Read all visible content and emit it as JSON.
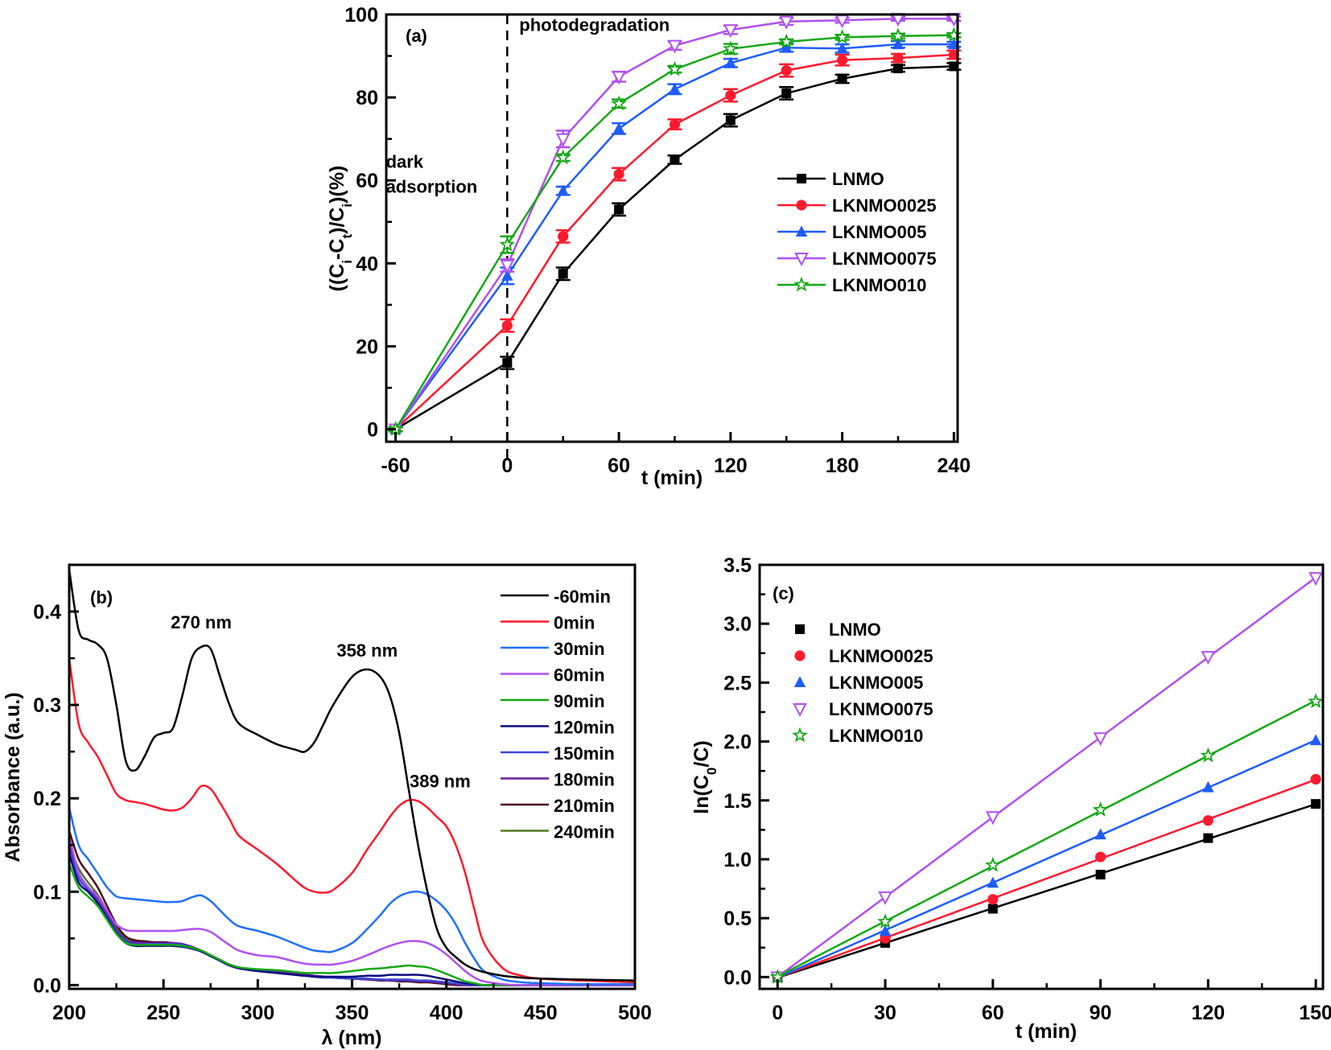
{
  "chart_data": [
    {
      "id": "a",
      "type": "line",
      "panel_label": "(a)",
      "title": "",
      "xlabel": "t (min)",
      "ylabel": "((C_i-C_t)/C_i)(%)",
      "ylabel_parts": {
        "open": "((C",
        "sub1": "i",
        "mid": "-C",
        "sub2": "t",
        "mid2": ")/C",
        "sub3": "i",
        "close": ")(%)"
      },
      "xlim": [
        -65,
        242
      ],
      "ylim": [
        -3,
        100
      ],
      "xticks": [
        -60,
        0,
        60,
        120,
        180,
        240
      ],
      "xticks_minor": [
        -30,
        30,
        90,
        150,
        210
      ],
      "yticks": [
        0,
        20,
        40,
        60,
        80,
        100
      ],
      "yticks_minor": [
        10,
        30,
        50,
        70,
        90
      ],
      "grid": false,
      "legend_position": "right",
      "annotations": [
        {
          "text": "dark",
          "x": -60,
          "y": 63
        },
        {
          "text": "adsorption",
          "x": -60,
          "y": 57
        },
        {
          "text": "photodegradation",
          "x": 3,
          "y": 96
        }
      ],
      "vline": {
        "x": 0,
        "style": "dashed"
      },
      "x": [
        -60,
        0,
        30,
        60,
        90,
        120,
        150,
        180,
        210,
        240
      ],
      "series": [
        {
          "name": "LNMO",
          "color": "#000000",
          "marker": "square",
          "values": [
            0,
            16,
            37.5,
            53,
            65,
            74.5,
            81,
            84.5,
            87,
            87.5
          ],
          "errors": [
            0.5,
            1.5,
            1.5,
            1.5,
            1,
            1.5,
            1.5,
            1,
            0.8,
            0.8
          ]
        },
        {
          "name": "LKNMO0025",
          "color": "#ff1a2e",
          "marker": "circle",
          "values": [
            0,
            25,
            46.5,
            61.5,
            73.5,
            80.5,
            86.5,
            89,
            89.5,
            90.3
          ],
          "errors": [
            0.5,
            1.5,
            1.5,
            1.5,
            1.2,
            1.5,
            1.5,
            1.3,
            1,
            1
          ]
        },
        {
          "name": "LKNMO005",
          "color": "#1f5cff",
          "marker": "triangle-up",
          "values": [
            0,
            37,
            57.5,
            72.5,
            82,
            88.3,
            92,
            91.8,
            92.8,
            92.8
          ],
          "errors": [
            0.5,
            2,
            1,
            1.3,
            1.2,
            1,
            1,
            1,
            0.8,
            0.6
          ]
        },
        {
          "name": "LKNMO0075",
          "color": "#b050f0",
          "marker": "triangle-down",
          "values": [
            0,
            39.5,
            70,
            85,
            92.5,
            96.3,
            98.3,
            98.6,
            99,
            99
          ],
          "errors": [
            0.5,
            1.5,
            2,
            1.2,
            1,
            1,
            0.8,
            0.6,
            0.5,
            0.5
          ]
        },
        {
          "name": "LKNMO010",
          "color": "#14a814",
          "marker": "star",
          "values": [
            0,
            44.5,
            65.5,
            78.5,
            86.8,
            91.7,
            93.4,
            94.5,
            94.8,
            95
          ],
          "errors": [
            0.5,
            2,
            0.8,
            1,
            0.8,
            1.2,
            0.6,
            0.6,
            0.6,
            0.5
          ]
        }
      ]
    },
    {
      "id": "b",
      "type": "line",
      "panel_label": "(b)",
      "title": "",
      "xlabel": "λ (nm)",
      "ylabel": "Absorbance (a.u.)",
      "xlim": [
        200,
        500
      ],
      "ylim": [
        -0.004,
        0.45
      ],
      "xticks": [
        200,
        250,
        300,
        350,
        400,
        450,
        500
      ],
      "xticks_minor": [
        225,
        275,
        325,
        375,
        425,
        475
      ],
      "yticks": [
        0.0,
        0.1,
        0.2,
        0.3,
        0.4
      ],
      "ytick_labels": [
        "0.0",
        "0.1",
        "0.2",
        "0.3",
        "0.4"
      ],
      "yticks_minor": [
        0.05,
        0.15,
        0.25,
        0.35
      ],
      "grid": false,
      "legend_position": "right",
      "annotations": [
        {
          "text": "270 nm",
          "x": 270,
          "y": 0.382
        },
        {
          "text": "358 nm",
          "x": 358,
          "y": 0.352
        },
        {
          "text": "389 nm",
          "x": 389,
          "y": 0.212
        }
      ],
      "x": [
        200,
        205,
        210,
        215,
        220,
        225,
        230,
        235,
        240,
        245,
        250,
        255,
        260,
        265,
        270,
        275,
        280,
        285,
        290,
        300,
        310,
        320,
        325,
        330,
        335,
        340,
        350,
        358,
        365,
        370,
        375,
        380,
        385,
        390,
        395,
        400,
        405,
        410,
        415,
        420,
        430,
        440,
        450,
        470,
        500
      ],
      "series": [
        {
          "name": "-60min",
          "color": "#000000",
          "values": [
            0.445,
            0.38,
            0.37,
            0.365,
            0.35,
            0.3,
            0.24,
            0.23,
            0.245,
            0.265,
            0.27,
            0.275,
            0.31,
            0.35,
            0.362,
            0.36,
            0.33,
            0.3,
            0.28,
            0.268,
            0.258,
            0.252,
            0.25,
            0.26,
            0.28,
            0.3,
            0.33,
            0.338,
            0.33,
            0.31,
            0.27,
            0.21,
            0.15,
            0.1,
            0.06,
            0.04,
            0.03,
            0.022,
            0.017,
            0.014,
            0.01,
            0.008,
            0.007,
            0.006,
            0.005
          ]
        },
        {
          "name": "0min",
          "color": "#ff1a2e",
          "values": [
            0.35,
            0.28,
            0.26,
            0.245,
            0.225,
            0.205,
            0.198,
            0.196,
            0.194,
            0.191,
            0.188,
            0.187,
            0.19,
            0.2,
            0.213,
            0.21,
            0.195,
            0.178,
            0.16,
            0.145,
            0.13,
            0.112,
            0.104,
            0.1,
            0.099,
            0.102,
            0.12,
            0.145,
            0.165,
            0.18,
            0.192,
            0.198,
            0.197,
            0.19,
            0.18,
            0.17,
            0.15,
            0.12,
            0.08,
            0.045,
            0.018,
            0.01,
            0.007,
            0.005,
            0.003
          ]
        },
        {
          "name": "30min",
          "color": "#1f6fff",
          "values": [
            0.19,
            0.15,
            0.135,
            0.12,
            0.105,
            0.095,
            0.093,
            0.092,
            0.091,
            0.09,
            0.089,
            0.089,
            0.09,
            0.094,
            0.096,
            0.09,
            0.08,
            0.07,
            0.063,
            0.058,
            0.052,
            0.044,
            0.04,
            0.037,
            0.036,
            0.036,
            0.045,
            0.06,
            0.075,
            0.087,
            0.095,
            0.099,
            0.1,
            0.097,
            0.09,
            0.08,
            0.065,
            0.045,
            0.028,
            0.015,
            0.006,
            0.003,
            0.002,
            0.001,
            0.001
          ]
        },
        {
          "name": "60min",
          "color": "#b050f0",
          "values": [
            0.16,
            0.12,
            0.105,
            0.095,
            0.08,
            0.065,
            0.059,
            0.058,
            0.058,
            0.058,
            0.058,
            0.058,
            0.059,
            0.06,
            0.06,
            0.057,
            0.05,
            0.043,
            0.037,
            0.032,
            0.03,
            0.025,
            0.023,
            0.022,
            0.022,
            0.022,
            0.026,
            0.032,
            0.038,
            0.042,
            0.045,
            0.047,
            0.047,
            0.045,
            0.04,
            0.033,
            0.024,
            0.015,
            0.008,
            0.004,
            0.001,
            0.0,
            0.0,
            0.0,
            0.0
          ]
        },
        {
          "name": "90min",
          "color": "#14a814",
          "values": [
            0.13,
            0.105,
            0.095,
            0.085,
            0.07,
            0.055,
            0.045,
            0.043,
            0.043,
            0.043,
            0.043,
            0.043,
            0.042,
            0.04,
            0.037,
            0.032,
            0.027,
            0.022,
            0.019,
            0.017,
            0.016,
            0.014,
            0.013,
            0.013,
            0.013,
            0.013,
            0.015,
            0.017,
            0.018,
            0.019,
            0.02,
            0.021,
            0.02,
            0.019,
            0.016,
            0.012,
            0.008,
            0.004,
            0.002,
            0.0,
            0.0,
            0.0,
            0.0,
            0.0,
            0.0
          ]
        },
        {
          "name": "120min",
          "color": "#0a0a80",
          "values": [
            0.14,
            0.11,
            0.1,
            0.088,
            0.072,
            0.056,
            0.045,
            0.042,
            0.042,
            0.042,
            0.042,
            0.042,
            0.041,
            0.039,
            0.036,
            0.031,
            0.026,
            0.021,
            0.018,
            0.015,
            0.013,
            0.011,
            0.01,
            0.009,
            0.009,
            0.009,
            0.009,
            0.01,
            0.01,
            0.011,
            0.011,
            0.011,
            0.011,
            0.01,
            0.008,
            0.006,
            0.004,
            0.002,
            0.001,
            0.0,
            0.0,
            0.0,
            0.0,
            0.0,
            0.0
          ]
        },
        {
          "name": "150min",
          "color": "#3a4ad8",
          "values": [
            0.145,
            0.115,
            0.102,
            0.09,
            0.074,
            0.058,
            0.047,
            0.044,
            0.044,
            0.044,
            0.044,
            0.044,
            0.043,
            0.04,
            0.036,
            0.031,
            0.026,
            0.021,
            0.018,
            0.015,
            0.013,
            0.011,
            0.01,
            0.009,
            0.008,
            0.008,
            0.007,
            0.007,
            0.006,
            0.006,
            0.006,
            0.006,
            0.005,
            0.005,
            0.004,
            0.003,
            0.002,
            0.001,
            0.0,
            0.0,
            0.0,
            0.0,
            0.0,
            0.0,
            0.0
          ]
        },
        {
          "name": "180min",
          "color": "#6a1a9a",
          "values": [
            0.15,
            0.12,
            0.105,
            0.093,
            0.077,
            0.06,
            0.048,
            0.046,
            0.045,
            0.045,
            0.045,
            0.045,
            0.044,
            0.041,
            0.037,
            0.032,
            0.027,
            0.022,
            0.019,
            0.016,
            0.014,
            0.012,
            0.011,
            0.01,
            0.009,
            0.008,
            0.007,
            0.006,
            0.006,
            0.005,
            0.005,
            0.005,
            0.004,
            0.004,
            0.003,
            0.002,
            0.001,
            0.0,
            0.0,
            0.0,
            0.0,
            0.0,
            0.0,
            0.0,
            0.0
          ]
        },
        {
          "name": "210min",
          "color": "#4a0a1a",
          "values": [
            0.165,
            0.135,
            0.12,
            0.105,
            0.085,
            0.065,
            0.052,
            0.048,
            0.047,
            0.046,
            0.046,
            0.045,
            0.044,
            0.041,
            0.037,
            0.032,
            0.027,
            0.022,
            0.019,
            0.016,
            0.014,
            0.012,
            0.011,
            0.01,
            0.009,
            0.008,
            0.007,
            0.006,
            0.005,
            0.005,
            0.004,
            0.004,
            0.003,
            0.003,
            0.002,
            0.001,
            0.0,
            0.0,
            0.0,
            0.0,
            0.0,
            0.0,
            0.0,
            0.0,
            0.0
          ]
        },
        {
          "name": "240min",
          "color": "#4e7a1e",
          "values": [
            0.15,
            0.125,
            0.11,
            0.097,
            0.08,
            0.062,
            0.05,
            0.046,
            0.046,
            0.045,
            0.045,
            0.045,
            0.044,
            0.041,
            0.037,
            0.032,
            0.027,
            0.022,
            0.019,
            0.016,
            0.014,
            0.012,
            0.011,
            0.01,
            0.009,
            0.008,
            0.007,
            0.006,
            0.006,
            0.005,
            0.005,
            0.005,
            0.004,
            0.004,
            0.003,
            0.002,
            0.001,
            0.0,
            0.0,
            0.0,
            0.0,
            0.0,
            0.0,
            0.0,
            0.0
          ]
        }
      ]
    },
    {
      "id": "c",
      "type": "scatter",
      "panel_label": "(c)",
      "title": "",
      "xlabel": "t (min)",
      "ylabel": "ln(C0/C)",
      "ylabel_parts": {
        "open": "ln(C",
        "sub": "0",
        "close": "/C)"
      },
      "xlim": [
        -5,
        152
      ],
      "ylim": [
        -0.1,
        3.5
      ],
      "xticks": [
        0,
        30,
        60,
        90,
        120,
        150
      ],
      "xticks_minor": [
        15,
        45,
        75,
        105,
        135
      ],
      "yticks": [
        0.0,
        0.5,
        1.0,
        1.5,
        2.0,
        2.5,
        3.0,
        3.5
      ],
      "ytick_labels": [
        "0.0",
        "0.5",
        "1.0",
        "1.5",
        "2.0",
        "2.5",
        "3.0",
        "3.5"
      ],
      "yticks_minor": [
        0.25,
        0.75,
        1.25,
        1.75,
        2.25,
        2.75,
        3.25
      ],
      "grid": false,
      "legend_position": "top-left",
      "fit_lines": true,
      "x": [
        0,
        30,
        60,
        90,
        120,
        150
      ],
      "series": [
        {
          "name": "LNMO",
          "color": "#000000",
          "marker": "square",
          "values": [
            0,
            0.29,
            0.58,
            0.87,
            1.18,
            1.47
          ]
        },
        {
          "name": "LKNMO0025",
          "color": "#ff1a2e",
          "marker": "circle",
          "values": [
            0,
            0.33,
            0.66,
            1.02,
            1.33,
            1.68
          ]
        },
        {
          "name": "LKNMO005",
          "color": "#1f5cff",
          "marker": "triangle-up",
          "values": [
            0,
            0.39,
            0.8,
            1.21,
            1.61,
            2.01
          ]
        },
        {
          "name": "LKNMO0075",
          "color": "#b050f0",
          "marker": "triangle-down",
          "values": [
            0,
            0.68,
            1.36,
            2.03,
            2.72,
            3.39
          ]
        },
        {
          "name": "LKNMO010",
          "color": "#14a814",
          "marker": "star",
          "values": [
            0,
            0.47,
            0.95,
            1.42,
            1.88,
            2.34
          ]
        }
      ]
    }
  ]
}
